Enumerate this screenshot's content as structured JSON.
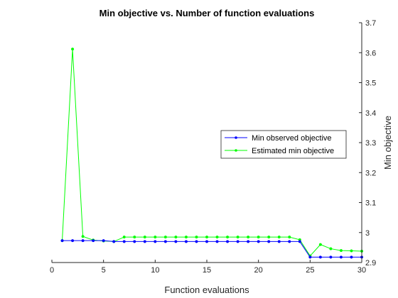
{
  "chart_data": {
    "type": "line",
    "title": "Min objective vs. Number of function evaluations",
    "xlabel": "Function evaluations",
    "ylabel": "Min objective",
    "xlim": [
      0,
      30
    ],
    "ylim": [
      2.9,
      3.7
    ],
    "xticks": [
      0,
      5,
      10,
      15,
      20,
      25,
      30
    ],
    "yticks": [
      2.9,
      3,
      3.1,
      3.2,
      3.3,
      3.4,
      3.5,
      3.6,
      3.7
    ],
    "ytick_labels": [
      "2.9",
      "3",
      "3.1",
      "3.2",
      "3.3",
      "3.4",
      "3.5",
      "3.6",
      "3.7"
    ],
    "y_axis_side": "right",
    "grid": false,
    "legend_position": "right-center",
    "x": [
      1,
      2,
      3,
      4,
      5,
      6,
      7,
      8,
      9,
      10,
      11,
      12,
      13,
      14,
      15,
      16,
      17,
      18,
      19,
      20,
      21,
      22,
      23,
      24,
      25,
      26,
      27,
      28,
      29,
      30
    ],
    "series": [
      {
        "name": "Min observed objective",
        "color": "#0000ff",
        "values": [
          2.973,
          2.973,
          2.973,
          2.973,
          2.973,
          2.97,
          2.97,
          2.97,
          2.97,
          2.97,
          2.97,
          2.97,
          2.97,
          2.97,
          2.97,
          2.97,
          2.97,
          2.97,
          2.97,
          2.97,
          2.97,
          2.97,
          2.97,
          2.97,
          2.918,
          2.918,
          2.918,
          2.918,
          2.918,
          2.918
        ]
      },
      {
        "name": "Estimated min objective",
        "color": "#00ff00",
        "values": [
          2.973,
          3.612,
          2.987,
          2.975,
          2.972,
          2.97,
          2.985,
          2.985,
          2.985,
          2.985,
          2.985,
          2.985,
          2.985,
          2.985,
          2.985,
          2.985,
          2.985,
          2.985,
          2.985,
          2.985,
          2.985,
          2.985,
          2.985,
          2.976,
          2.922,
          2.96,
          2.946,
          2.94,
          2.939,
          2.938
        ]
      }
    ]
  }
}
